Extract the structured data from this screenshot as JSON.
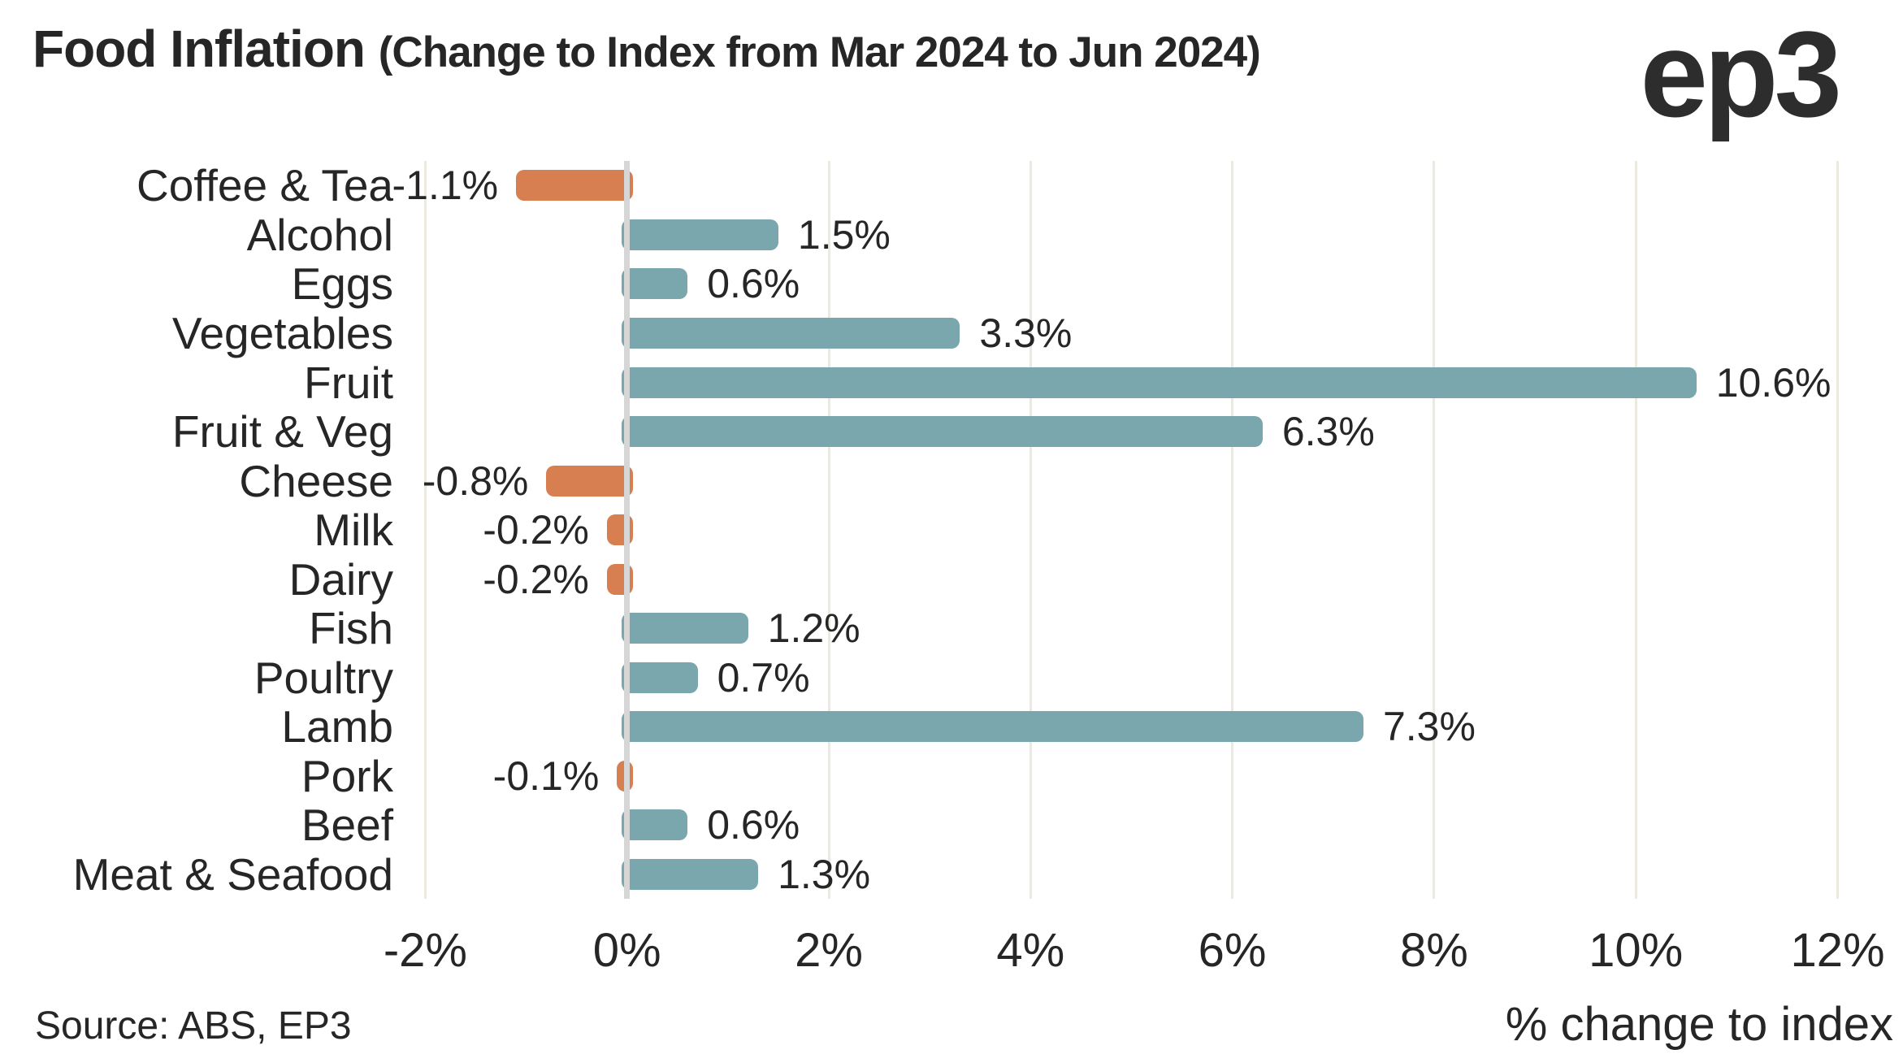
{
  "header": {
    "title": "Food Inflation ",
    "subtitle": "(Change to Index from Mar 2024 to Jun 2024)",
    "logo": "ep3"
  },
  "footer": {
    "source": "Source: ABS, EP3",
    "xlabel": "% change to index"
  },
  "chart_data": {
    "type": "bar",
    "orientation": "horizontal",
    "title": "Food Inflation (Change to Index from Mar 2024 to Jun 2024)",
    "categories": [
      "Coffee & Tea",
      "Alcohol",
      "Eggs",
      "Vegetables",
      "Fruit",
      "Fruit & Veg",
      "Cheese",
      "Milk",
      "Dairy",
      "Fish",
      "Poultry",
      "Lamb",
      "Pork",
      "Beef",
      "Meat & Seafood"
    ],
    "values": [
      -1.1,
      1.5,
      0.6,
      3.3,
      10.6,
      6.3,
      -0.8,
      -0.2,
      -0.2,
      1.2,
      0.7,
      7.3,
      -0.1,
      0.6,
      1.3
    ],
    "value_labels": [
      "-1.1%",
      "1.5%",
      "0.6%",
      "3.3%",
      "10.6%",
      "6.3%",
      "-0.8%",
      "-0.2%",
      "-0.2%",
      "1.2%",
      "0.7%",
      "7.3%",
      "-0.1%",
      "0.6%",
      "1.3%"
    ],
    "x_ticks": [
      -2,
      0,
      2,
      4,
      6,
      8,
      10,
      12
    ],
    "x_tick_labels": [
      "-2%",
      "0%",
      "2%",
      "4%",
      "6%",
      "8%",
      "10%",
      "12%"
    ],
    "xlim": [
      -2.7,
      12.6
    ],
    "xlabel": "% change to index",
    "grid": true,
    "legend": false,
    "colors": {
      "positive": "#7aa6ae",
      "negative": "#d87f52",
      "gridline": "#eceadf",
      "zero_line": "#d6d6d6",
      "text": "#262626",
      "logo": "#2d2d2d",
      "background": "#ffffff"
    }
  }
}
